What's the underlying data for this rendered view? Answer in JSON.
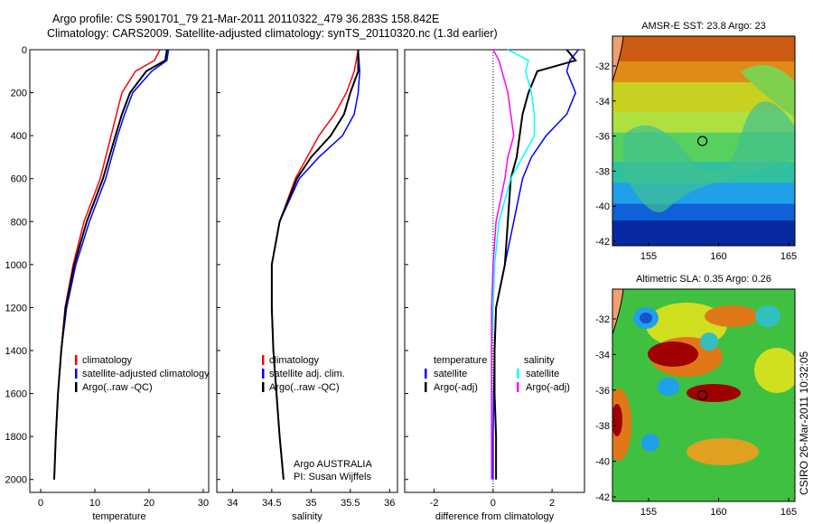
{
  "title_line1": "Argo profile: CS 5901701_79 21-Mar-2011 20110322_479 36.283S 158.842E",
  "title_line2": "Climatology: CARS2009. Satellite-adjusted climatology: synTS_20110320.nc (1.3d earlier)",
  "stamp": "CSIRO 26-Mar-2011 10:32:05",
  "colors": {
    "red": "#ff0000",
    "blue": "#0000ff",
    "black": "#000000",
    "cyan": "#00ffff",
    "magenta": "#ff00ff"
  },
  "chart_data": [
    {
      "type": "line",
      "xlabel": "temperature",
      "xlim": [
        -2,
        31
      ],
      "ylim": [
        0,
        2060
      ],
      "xticks": [
        0,
        10,
        20,
        30
      ],
      "yticks": [
        0,
        200,
        400,
        600,
        800,
        1000,
        1200,
        1400,
        1600,
        1800,
        2000
      ],
      "legend": [
        "climatology",
        "satellite-adjusted climatology",
        "Argo(..raw -QC)"
      ],
      "depth": [
        0,
        50,
        100,
        200,
        300,
        400,
        600,
        800,
        1000,
        1200,
        1400,
        1600,
        1800,
        2000
      ],
      "series": [
        {
          "name": "climatology",
          "color": "red",
          "values": [
            22,
            21,
            17.5,
            15,
            14,
            13,
            11,
            8,
            6,
            4.5,
            3.8,
            3.2,
            2.8,
            2.5
          ]
        },
        {
          "name": "satellite-adjusted climatology",
          "color": "blue",
          "values": [
            23.6,
            23.3,
            20.5,
            17,
            15.5,
            14.2,
            12,
            9,
            6.5,
            4.8,
            3.8,
            3.2,
            2.8,
            2.5
          ]
        },
        {
          "name": "Argo(..raw -QC)",
          "color": "black",
          "values": [
            23.3,
            23,
            19.5,
            16.5,
            15,
            13.8,
            11.5,
            8.5,
            6.2,
            4.6,
            3.8,
            3.2,
            2.8,
            2.5
          ]
        }
      ]
    },
    {
      "type": "line",
      "xlabel": "salinity",
      "xlim": [
        33.8,
        36.1
      ],
      "ylim": [
        0,
        2060
      ],
      "xticks": [
        34,
        34.5,
        35,
        35.5,
        36
      ],
      "legend": [
        "climatology",
        "satellite adj. clim.",
        "Argo(..raw -QC)"
      ],
      "annotation": [
        "Argo AUSTRALIA",
        "PI: Susan Wijffels"
      ],
      "depth": [
        0,
        100,
        200,
        300,
        400,
        500,
        600,
        800,
        1000,
        1200,
        1400,
        1600,
        1800,
        2000
      ],
      "series": [
        {
          "name": "climatology",
          "color": "red",
          "values": [
            35.6,
            35.55,
            35.45,
            35.3,
            35.1,
            34.95,
            34.8,
            34.6,
            34.5,
            34.5,
            34.52,
            34.56,
            34.6,
            34.65
          ]
        },
        {
          "name": "satellite adj. clim.",
          "color": "blue",
          "values": [
            35.6,
            35.62,
            35.6,
            35.55,
            35.4,
            35.1,
            34.85,
            34.6,
            34.5,
            34.5,
            34.52,
            34.56,
            34.6,
            34.65
          ]
        },
        {
          "name": "Argo(..raw -QC)",
          "color": "black",
          "values": [
            35.6,
            35.6,
            35.5,
            35.42,
            35.25,
            35.0,
            34.82,
            34.6,
            34.5,
            34.5,
            34.52,
            34.56,
            34.6,
            34.65
          ]
        }
      ]
    },
    {
      "type": "line",
      "xlabel": "difference from climatology",
      "xlim": [
        -3,
        3.1
      ],
      "ylim": [
        0,
        2060
      ],
      "xticks": [
        -2,
        0,
        2
      ],
      "legend_temperature": [
        "temperature",
        "satellite",
        "Argo(-adj)"
      ],
      "legend_salinity": [
        "salinity",
        "satellite",
        "Argo(-adj)"
      ],
      "depth": [
        0,
        50,
        100,
        200,
        300,
        400,
        500,
        600,
        800,
        1000,
        1200,
        1400,
        1600,
        1800,
        2000
      ],
      "series": [
        {
          "name": "temperature satellite",
          "color": "blue",
          "values": [
            2.9,
            2.6,
            2.5,
            2.8,
            2.5,
            1.8,
            1.3,
            1.0,
            0.7,
            0.4,
            0.1,
            0.05,
            0.02,
            0.0,
            0.0
          ]
        },
        {
          "name": "temperature Argo(-adj)",
          "color": "black",
          "values": [
            2.5,
            2.8,
            1.5,
            1.2,
            1.0,
            0.9,
            0.8,
            0.6,
            0.5,
            0.4,
            0.1,
            0.05,
            0.05,
            0.1,
            0.1
          ]
        },
        {
          "name": "salinity satellite",
          "color": "cyan",
          "values": [
            0.5,
            1.2,
            1.1,
            1.3,
            1.4,
            1.4,
            1.0,
            0.6,
            0.2,
            0.05,
            0.0,
            -0.05,
            -0.05,
            -0.05,
            -0.05
          ]
        },
        {
          "name": "salinity Argo(-adj)",
          "color": "magenta",
          "values": [
            0.0,
            0.2,
            0.3,
            0.5,
            0.6,
            0.7,
            0.5,
            0.4,
            0.1,
            0.0,
            -0.05,
            -0.05,
            -0.05,
            -0.05,
            -0.05
          ]
        }
      ]
    },
    {
      "type": "heatmap",
      "title": "AMSR-E SST: 23.8 Argo: 23",
      "xticks": [
        155,
        160,
        165
      ],
      "yticks": [
        -32,
        -34,
        -36,
        -38,
        -40,
        -42
      ],
      "float_position": [
        158.842,
        -36.283
      ]
    },
    {
      "type": "heatmap",
      "title": "Altimetric SLA: 0.35 Argo: 0.26",
      "xticks": [
        155,
        160,
        165
      ],
      "yticks": [
        -32,
        -34,
        -36,
        -38,
        -40,
        -42
      ],
      "float_position": [
        158.842,
        -36.283
      ]
    }
  ]
}
